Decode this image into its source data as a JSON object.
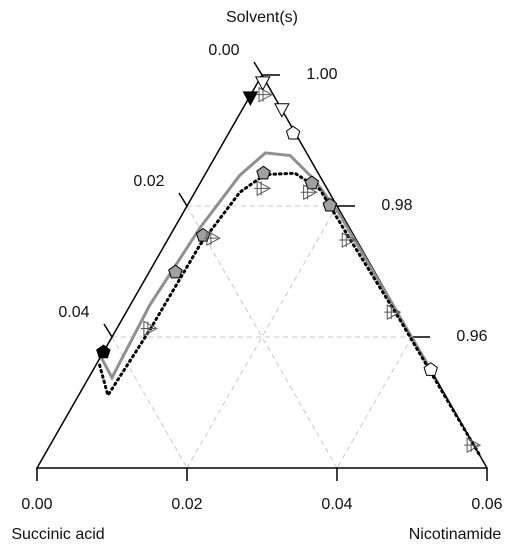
{
  "chart_data": {
    "type": "ternary",
    "apex_title": "Solvent(s)",
    "left_title": "Succinic acid",
    "right_title": "Nicotinamide",
    "lim": [
      0,
      0.06
    ],
    "left_ticks": [
      {
        "value": 0,
        "label": "0.00"
      },
      0.02,
      0.04
    ],
    "right_ticks": [
      {
        "value": 1,
        "label": "1.00"
      },
      0.98,
      0.96
    ],
    "bottom_ticks": [
      {
        "value": 0,
        "label": "0.00"
      },
      0.02,
      0.04,
      0.06
    ],
    "grid": true,
    "curves": [
      {
        "color": "#909090",
        "style": "solid",
        "a": [
          0.043,
          0.0431,
          0.0325,
          0.0199,
          0.0106,
          0.0055,
          0.0024,
          0.001,
          0.0003,
          0
        ],
        "b": [
          0,
          0.0031,
          0.0026,
          0.0034,
          0.0047,
          0.0064,
          0.0099,
          0.015,
          0.0211,
          0.0443
        ]
      },
      {
        "color": "#000000",
        "style": "dotted",
        "a": [
          0.0438,
          0.045,
          0.0344,
          0.0212,
          0.0119,
          0.0072,
          0.0031,
          0.001,
          0.0008,
          0.0003,
          0
        ],
        "b": [
          0.0005,
          0.0039,
          0.0045,
          0.0047,
          0.006,
          0.008,
          0.0119,
          0.0165,
          0.0244,
          0.0371,
          0.058
        ]
      }
    ],
    "series": [
      {
        "marker": "pentagon",
        "color": "#000000",
        "a": [
          0.0423
        ],
        "b": [
          0
        ]
      },
      {
        "marker": "triangle-down",
        "color": "#000000",
        "a": [
          0.0033
        ],
        "b": [
          0.0002
        ]
      },
      {
        "marker": "pentagon",
        "color": "#a0a0a0",
        "a": [
          0.0266,
          0.0201,
          0.0073,
          0.0016,
          0.0009
        ],
        "b": [
          0.0035,
          0.0044,
          0.0077,
          0.0149,
          0.019
        ]
      },
      {
        "marker": "triangle-plus",
        "color": "#a0a0a0",
        "a": [
          0.0343,
          0.019,
          0.0085,
          0.0026,
          0.0011,
          0.0006,
          0.0001,
          0.0011
        ],
        "b": [
          0.0044,
          0.0059,
          0.0088,
          0.0153,
          0.0241,
          0.0356,
          0.0564,
          0.0019
        ]
      },
      {
        "marker": "triangle-down",
        "color": "#ffffff",
        "a": [
          0,
          0.0005
        ],
        "b": [
          0.0053,
          0.0007
        ]
      },
      {
        "marker": "pentagon",
        "color": "#ffffff",
        "a": [
          0.0003,
          0
        ],
        "b": [
          0.0086,
          0.045
        ]
      }
    ]
  }
}
